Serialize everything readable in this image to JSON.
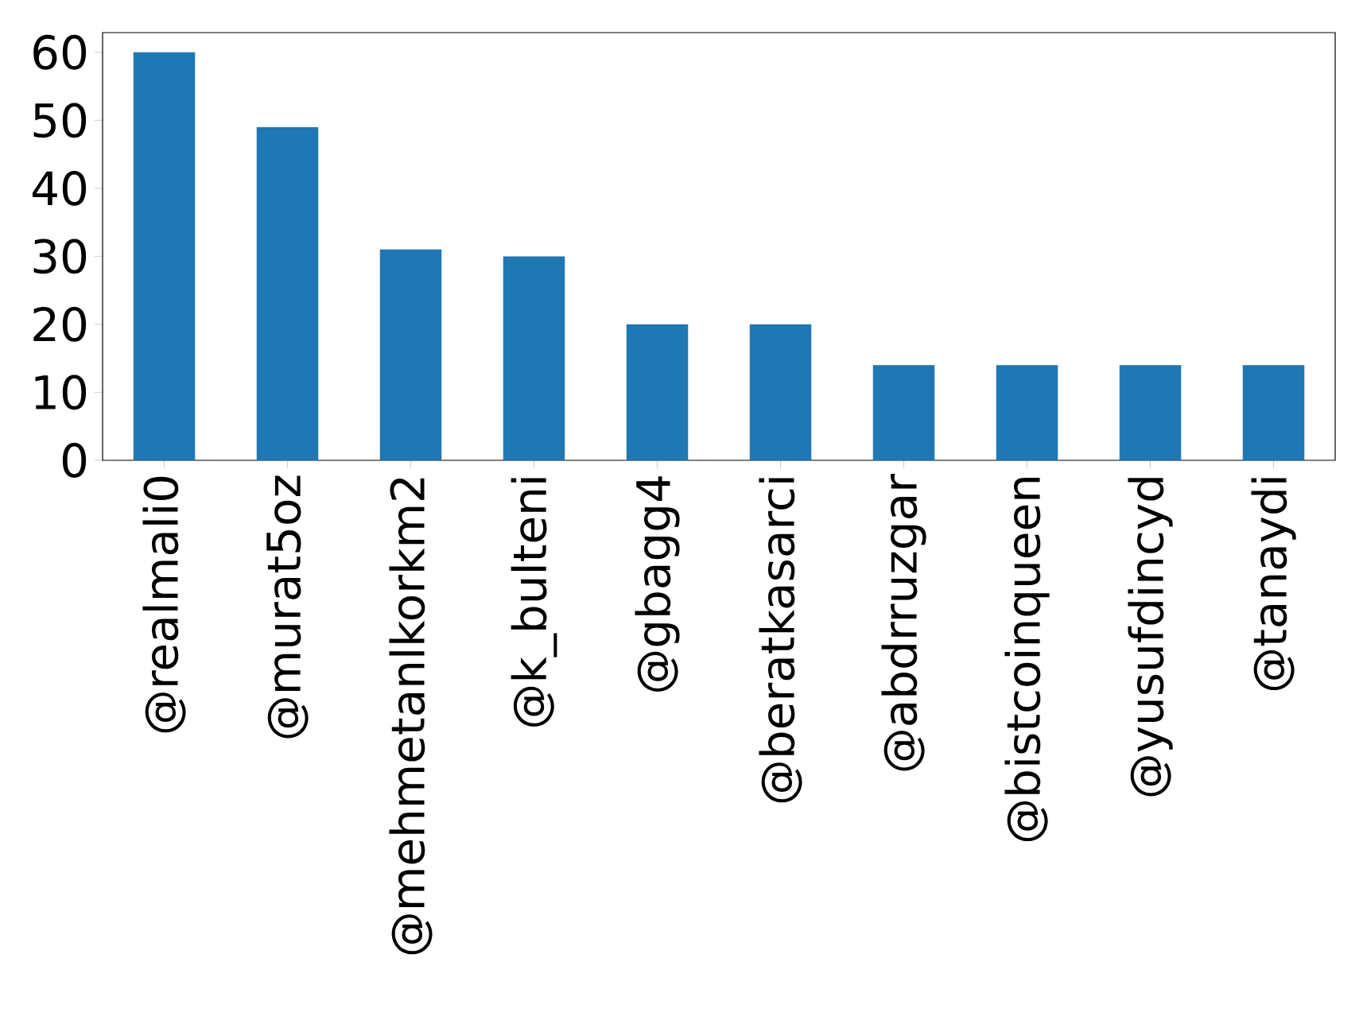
{
  "chart_data": {
    "type": "bar",
    "categories": [
      "@realmali0",
      "@murat5oz",
      "@mehmetanlkorkm2",
      "@k_bulteni",
      "@gbagg4",
      "@beratkasarci",
      "@abdrruzgar",
      "@bistcoinqueen",
      "@yusufdincyd",
      "@tanaydi"
    ],
    "values": [
      60,
      49,
      31,
      30,
      20,
      20,
      14,
      14,
      14,
      14
    ],
    "color": "#1f77b4",
    "ylim": [
      0,
      62.9
    ],
    "yticks": [
      0,
      10,
      20,
      30,
      40,
      50,
      60
    ]
  }
}
